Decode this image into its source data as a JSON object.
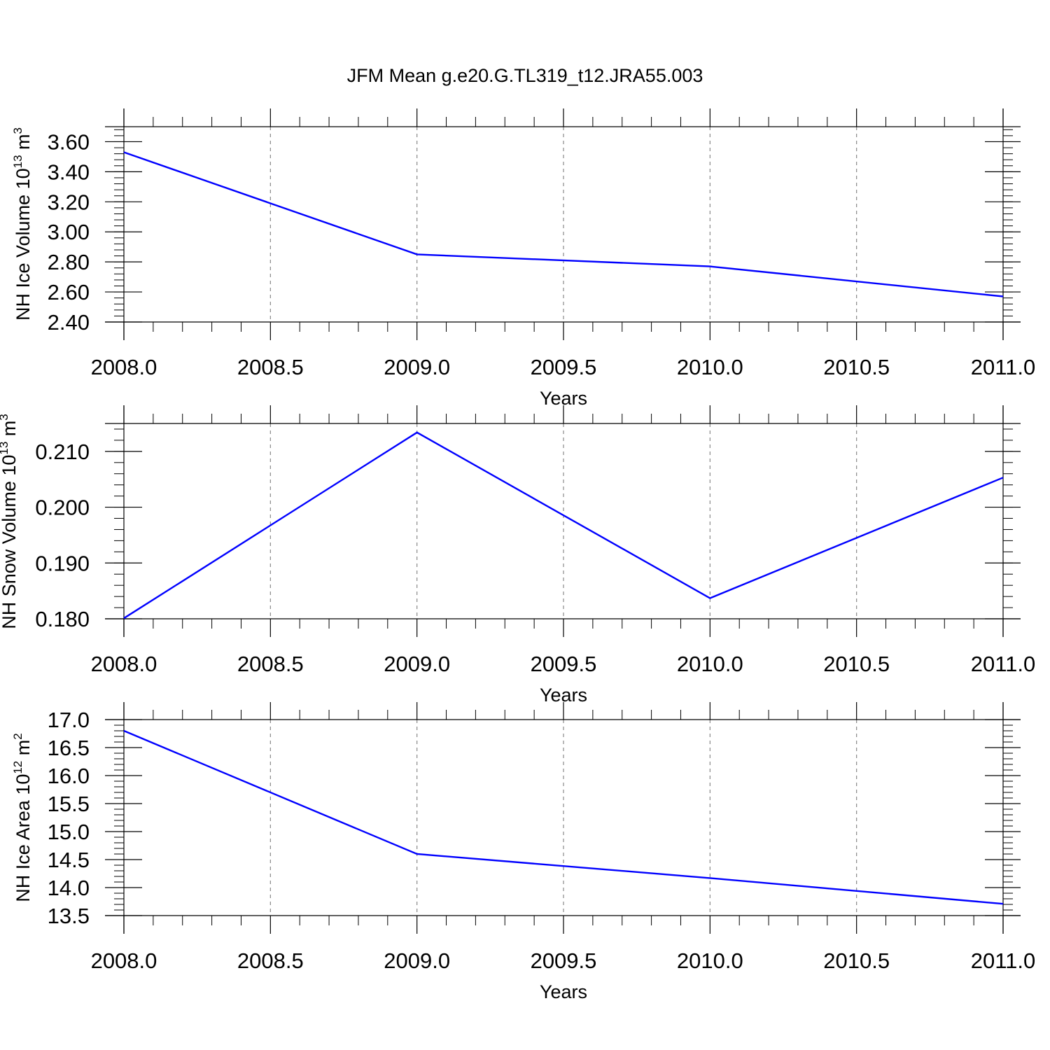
{
  "title": "JFM Mean g.e20.G.TL319_t12.JRA55.003",
  "colors": {
    "line": "#0000ff",
    "axis": "#000000",
    "grid": "#888888"
  },
  "chart_data": [
    {
      "type": "line",
      "ylabel": "NH Ice Volume 10",
      "ylabel_exp": "13",
      "ylabel_unit": " m",
      "ylabel_unit_exp": "3",
      "xlabel": "Years",
      "xlim": [
        2008.0,
        2011.0
      ],
      "ylim": [
        2.4,
        3.7
      ],
      "x_ticks": [
        "2008.0",
        "2008.5",
        "2009.0",
        "2009.5",
        "2010.0",
        "2010.5",
        "2011.0"
      ],
      "y_ticks": [
        "2.40",
        "2.60",
        "2.80",
        "3.00",
        "3.20",
        "3.40",
        "3.60"
      ],
      "x": [
        2008,
        2009,
        2010,
        2011
      ],
      "values": [
        3.53,
        2.85,
        2.77,
        2.57
      ],
      "grid": "vertical dashed"
    },
    {
      "type": "line",
      "ylabel": "NH Snow Volume 10",
      "ylabel_exp": "13",
      "ylabel_unit": " m",
      "ylabel_unit_exp": "3",
      "xlabel": "Years",
      "xlim": [
        2008.0,
        2011.0
      ],
      "ylim": [
        0.18,
        0.215
      ],
      "x_ticks": [
        "2008.0",
        "2008.5",
        "2009.0",
        "2009.5",
        "2010.0",
        "2010.5",
        "2011.0"
      ],
      "y_ticks": [
        "0.180",
        "0.190",
        "0.200",
        "0.210"
      ],
      "x": [
        2008,
        2009,
        2010,
        2011
      ],
      "values": [
        0.1801,
        0.2134,
        0.1837,
        0.2053
      ],
      "grid": "vertical dashed"
    },
    {
      "type": "line",
      "ylabel": "NH Ice Area 10",
      "ylabel_exp": "12",
      "ylabel_unit": " m",
      "ylabel_unit_exp": "2",
      "xlabel": "Years",
      "xlim": [
        2008.0,
        2011.0
      ],
      "ylim": [
        13.5,
        17.0
      ],
      "x_ticks": [
        "2008.0",
        "2008.5",
        "2009.0",
        "2009.5",
        "2010.0",
        "2010.5",
        "2011.0"
      ],
      "y_ticks": [
        "13.5",
        "14.0",
        "14.5",
        "15.0",
        "15.5",
        "16.0",
        "16.5",
        "17.0"
      ],
      "x": [
        2008,
        2009,
        2010,
        2011
      ],
      "values": [
        16.8,
        14.6,
        14.17,
        13.71
      ],
      "grid": "vertical dashed"
    }
  ]
}
